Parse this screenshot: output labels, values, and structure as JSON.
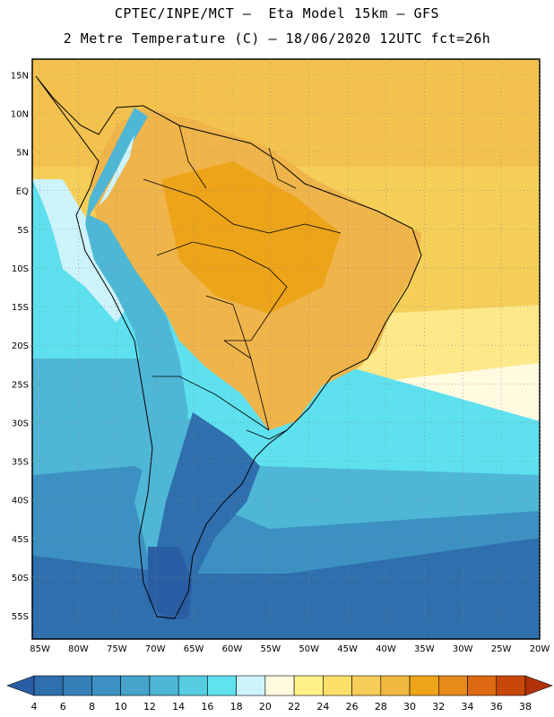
{
  "header": {
    "title_line1": "CPTEC/INPE/MCT –  Eta Model 15km – GFS",
    "title_line2": "2 Metre Temperature (C) – 18/06/2020 12UTC fct=26h"
  },
  "map": {
    "lat_labels": [
      "15N",
      "10N",
      "5N",
      "EQ",
      "5S",
      "10S",
      "15S",
      "20S",
      "25S",
      "30S",
      "35S",
      "40S",
      "45S",
      "50S",
      "55S"
    ],
    "lat_values": [
      15,
      10,
      5,
      0,
      -5,
      -10,
      -15,
      -20,
      -25,
      -30,
      -35,
      -40,
      -45,
      -50,
      -55
    ],
    "lon_labels": [
      "85W",
      "80W",
      "75W",
      "70W",
      "65W",
      "60W",
      "55W",
      "50W",
      "45W",
      "40W",
      "35W",
      "30W",
      "25W",
      "20W"
    ],
    "lon_values": [
      -85,
      -80,
      -75,
      -70,
      -65,
      -60,
      -55,
      -50,
      -45,
      -40,
      -35,
      -30,
      -25,
      -20
    ],
    "lat_range": [
      -58,
      17
    ],
    "lon_range": [
      -86,
      -20
    ]
  },
  "colorbar": {
    "labels": [
      "4",
      "6",
      "8",
      "10",
      "12",
      "14",
      "16",
      "18",
      "20",
      "22",
      "24",
      "26",
      "28",
      "30",
      "32",
      "34",
      "36",
      "38"
    ],
    "colors": [
      "#2a5ea4",
      "#2f6fae",
      "#357fb8",
      "#3c91c2",
      "#46a3cc",
      "#4fb7d6",
      "#56cce2",
      "#5fe3ef",
      "#cdf3fb",
      "#fffae0",
      "#fff08a",
      "#fde06a",
      "#f7cc58",
      "#f0b840",
      "#eda418",
      "#e68a1a",
      "#dd6a12",
      "#c8480b",
      "#b13208"
    ]
  }
}
